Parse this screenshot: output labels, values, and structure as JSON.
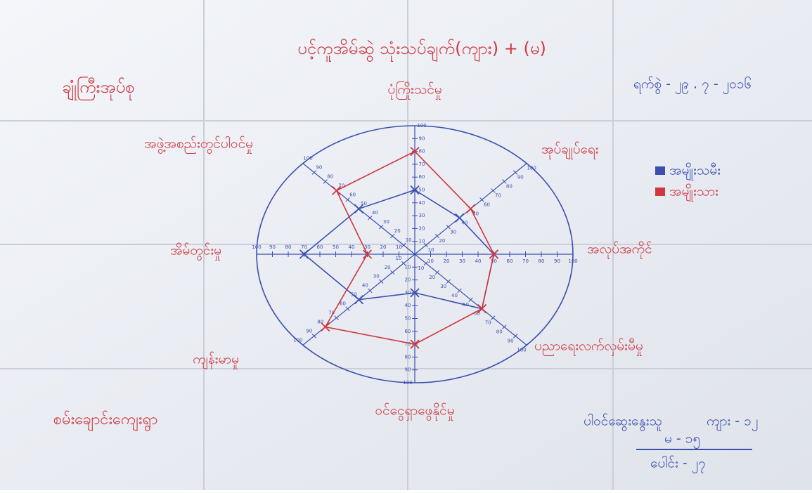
{
  "chart_data": {
    "type": "radar",
    "title": "ပင့်ကူအိမ်ဆွဲ သုံးသပ်ချက်(ကျား) + (မ)",
    "categories": [
      "ပုံကြိုးသင်မှု",
      "အုပ်ချုပ်ရေး",
      "အလုပ်အကိုင်",
      "ပညာရေးလက်လှမ်းမီမှု",
      "ဝင်ငွေရှာဖွေနိုင်မှု",
      "ကျန်းမာမှု",
      "အိမ်တွင်းမှု",
      "အဖွဲ့အစည်းတွင်ပါဝင်မှု"
    ],
    "series": [
      {
        "name": "အမျိုးသမီး",
        "color": "#3a4fb0",
        "values": [
          50,
          40,
          50,
          60,
          30,
          50,
          70,
          50
        ]
      },
      {
        "name": "အမျိုးသား",
        "color": "#d0373f",
        "values": [
          80,
          50,
          50,
          60,
          70,
          80,
          30,
          70
        ]
      }
    ],
    "rlim": [
      0,
      100
    ],
    "rticks": [
      10,
      20,
      30,
      40,
      50,
      60,
      70,
      80,
      90,
      100
    ]
  },
  "group": "ချုံကြီးအုပ်စု",
  "date": "ရက်စွဲ - ၂၉ . ၇ - ၂၀၁၆",
  "village": "စမ်းချောင်းကျေးရွာ",
  "participants": {
    "label": "ပါဝင်ဆွေးနွေးသူ",
    "male": "ကျား - ၁၂",
    "female": "မ - ၁၅",
    "total": "ပေါင်း - ၂၇"
  }
}
